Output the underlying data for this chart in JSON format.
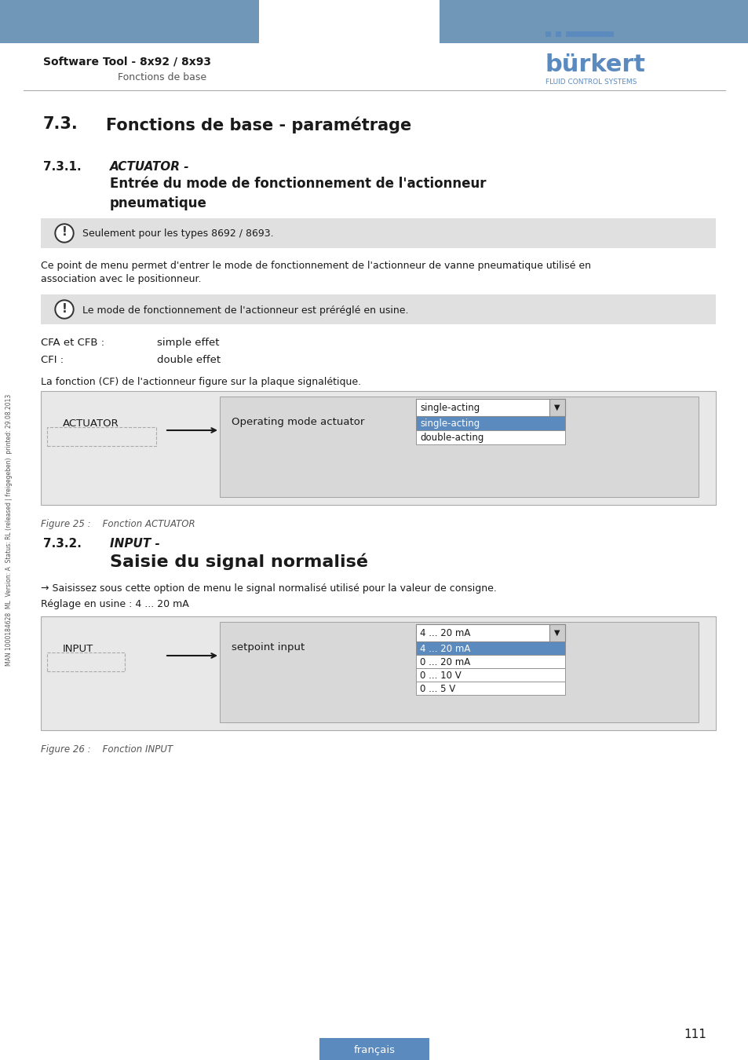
{
  "page_bg": "#ffffff",
  "header_bar_color": "#7096b8",
  "header_bar_height": 0.055,
  "header_title": "Software Tool - 8x92 / 8x93",
  "header_subtitle": "Fonctions de base",
  "burkert_text": "bürkert",
  "burkert_sub": "FLUID CONTROL SYSTEMS",
  "section_title": "7.3.",
  "section_title_text": "Fonctions de base - paramétrage",
  "subsection1_num": "7.3.1.",
  "subsection1_title": "ACTUATOR -",
  "subsection1_subtitle": "Entrée du mode de fonctionnement de l'actionneur\npneumatique",
  "note1_text": "Seulement pour les types 8692 / 8693.",
  "para1_text": "Ce point de menu permet d'entrer le mode de fonctionnement de l'actionneur de vanne pneumatique utilisé en\nassociation avec le positionneur.",
  "note2_text": "Le mode de fonctionnement de l'actionneur est préréglé en usine.",
  "cfa_label": "CFA et CFB :",
  "cfa_value": "simple effet",
  "cfi_label": "CFI :",
  "cfi_value": "double effet",
  "caption1_text": "La fonction (CF) de l'actionneur figure sur la plaque signalétique.",
  "fig1_actuator_label": "ACTUATOR",
  "fig1_mode_label": "Operating mode actuator",
  "fig1_dropdown_selected": "single-acting",
  "fig1_dropdown_items": [
    "single-acting",
    "double-acting"
  ],
  "fig1_caption": "Figure 25 :    Fonction ACTUATOR",
  "subsection2_num": "7.3.2.",
  "subsection2_title": "INPUT -",
  "subsection2_subtitle": "Saisie du signal normalisé",
  "arrow_text": "→ Saisissez sous cette option de menu le signal normalisé utilisé pour la valeur de consigne.",
  "factory_text": "Réglage en usine : 4 ... 20 mA",
  "fig2_input_label": "INPUT",
  "fig2_mode_label": "setpoint input",
  "fig2_dropdown_selected": "4 ... 20 mA",
  "fig2_dropdown_items": [
    "4 ... 20 mA",
    "0 ... 20 mA",
    "0 ... 10 V",
    "0 ... 5 V"
  ],
  "fig2_caption": "Figure 26 :    Fonction INPUT",
  "page_number": "111",
  "footer_text": "français",
  "sidebar_text": "MAN 1000184628  ML  Version: A  Status: RL (released | freigegeben)  printed: 29.08.2013",
  "note_bg": "#e0e0e0",
  "fig_bg": "#e8e8e8",
  "dropdown_bg": "#f0f0f0",
  "dropdown_selected_bg": "#5b8abf",
  "dropdown_selected_text": "#ffffff",
  "highlight_blue": "#5b8abf",
  "text_dark": "#1a1a1a",
  "text_gray": "#555555"
}
